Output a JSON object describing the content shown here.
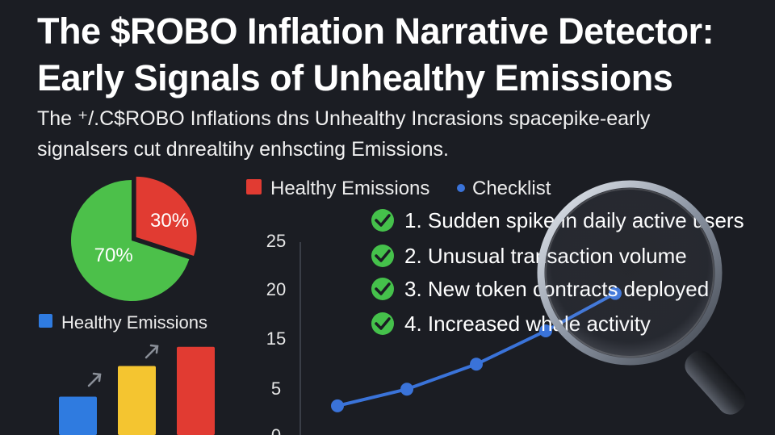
{
  "title_line1": "The $ROBO Inflation Narrative Detector:",
  "title_line2": "Early Signals of Unhealthy Emissions",
  "subtitle_line1": "The ⁺/.C$ROBO Inflations dns Unhealthy Incrasions spacepike-early",
  "subtitle_line2": "signalsers cut dnrealtihy enhscting Emissions.",
  "colors": {
    "background": "#1b1d23",
    "green": "#4cc04a",
    "red": "#e13b32",
    "blue": "#2f7be0",
    "yellow": "#f4c530",
    "check_green": "#45c14b",
    "line_blue": "#3a73d9"
  },
  "chart_data": [
    {
      "type": "pie",
      "slices": [
        {
          "label": "70%",
          "value": 70,
          "color": "#4cc04a"
        },
        {
          "label": "30%",
          "value": 30,
          "color": "#e13b32"
        }
      ]
    },
    {
      "type": "bar",
      "legend": "Healthy Emissions",
      "values": [
        5,
        9,
        11.5
      ],
      "colors": [
        "#2f7be0",
        "#f4c530",
        "#e13b32"
      ],
      "ylim": [
        0,
        14
      ]
    },
    {
      "type": "line",
      "legend": [
        "Healthy Emissions",
        "Checklist"
      ],
      "yticks": [
        "25",
        "20",
        "15",
        "5",
        "0"
      ],
      "x": [
        1,
        2,
        3,
        4,
        5
      ],
      "values": [
        3.5,
        5.5,
        8.5,
        12.5,
        17
      ],
      "ylim": [
        0,
        28
      ]
    }
  ],
  "checklist": [
    "1. Sudden spike in daily active users",
    "2. Unusual transaction volume",
    "3. New token contracts deployed",
    "4. Increased whale activity"
  ],
  "icons": {
    "check": "check-circle-icon",
    "magnifier": "magnifying-glass-icon",
    "arrow": "trend-arrow-icon"
  }
}
